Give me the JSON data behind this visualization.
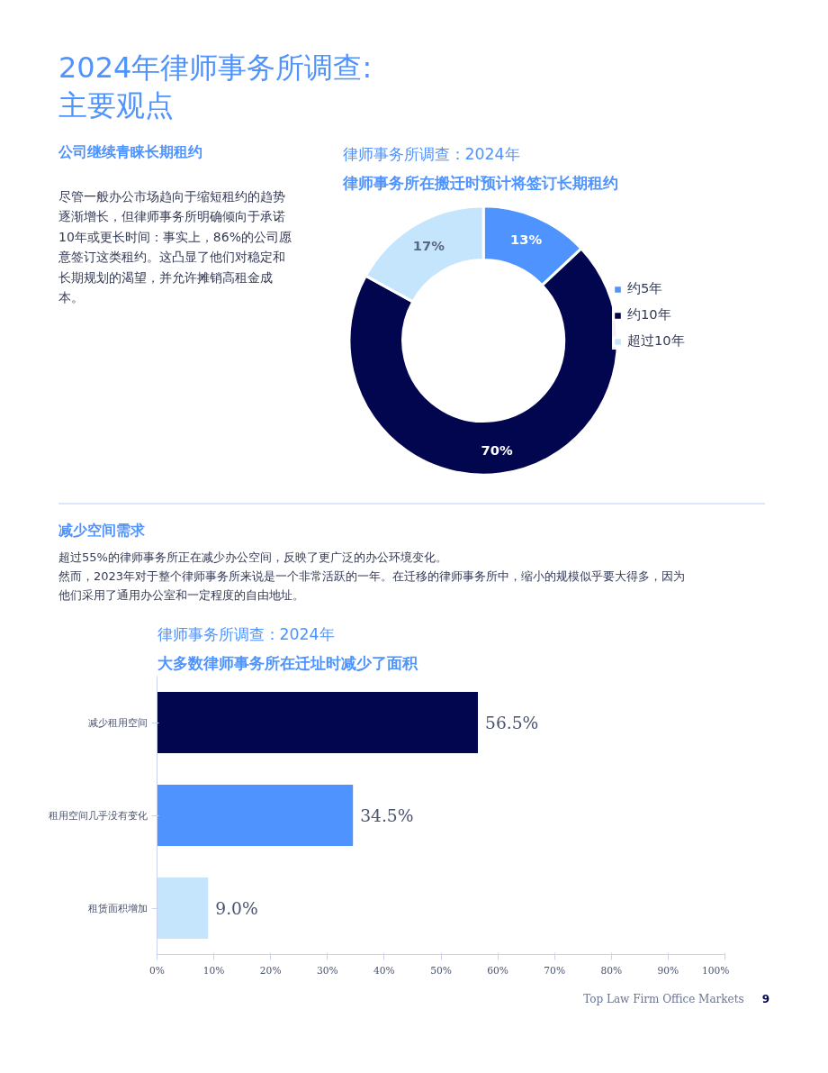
{
  "chart_data": [
    {
      "type": "donut",
      "title": "律师事务所调查：2024年",
      "subtitle": "律师事务所在搬迁时预计将签订长期租约",
      "categories": [
        "约5年",
        "约10年",
        "超过10年"
      ],
      "values": [
        13,
        70,
        17
      ],
      "value_labels": [
        "13%",
        "70%",
        "17%"
      ],
      "colors": [
        "#4f93fe",
        "#02064f",
        "#c5e5fc"
      ],
      "legend": "right",
      "annotations": [
        "2024年律师事务所调查:主要观点",
        "公司继续青睐长期租约",
        "尽管一般办公市场趋向于缩短租约的趋势逐渐增长，但律师事务所明确倾向于承诺10年或更长时间：事实上，86%的公司愿意签订这类租约。这凸显了他们对稳定和长期规划的渴望，并允许摊销高租金成本。"
      ]
    },
    {
      "type": "bar",
      "orientation": "horizontal",
      "title": "律师事务所调查：2024年",
      "subtitle": "大多数律师事务所在迁址时减少了面积",
      "categories": [
        "减少租用空间",
        "租用空间几乎没有变化",
        "租赁面积增加"
      ],
      "values": [
        56.5,
        34.5,
        9.0
      ],
      "value_labels": [
        "56.5%",
        "34.5%",
        "9.0%"
      ],
      "colors": [
        "#02064f",
        "#4f93fe",
        "#c5e5fc"
      ],
      "xlim": [
        0,
        100
      ],
      "xticks": [
        {
          "value": 0,
          "label": "0%"
        },
        {
          "value": 10,
          "label": "10%"
        },
        {
          "value": 20,
          "label": "20%"
        },
        {
          "value": 30,
          "label": "30%"
        },
        {
          "value": 40,
          "label": "40%"
        },
        {
          "value": 50,
          "label": "50%"
        },
        {
          "value": 60,
          "label": "60%"
        },
        {
          "value": 70,
          "label": "70%"
        },
        {
          "value": 80,
          "label": "80%"
        },
        {
          "value": 90,
          "label": "90%"
        },
        {
          "value": 100,
          "label": "100%"
        }
      ],
      "grid": false,
      "annotations": [
        "减少空间需求",
        "超过55%的律师事务所正在减少办公空间，反映了更广泛的办公环境变化。",
        "然而，2023年对于整个律师事务所来说是一个非常活跃的一年。在迁移的律师事务所中，缩小的规模似乎要大得多，因为他们采用了通用办公室和一定程度的自由地址。",
        "Top Law Firm Office Markets",
        "9"
      ]
    }
  ]
}
